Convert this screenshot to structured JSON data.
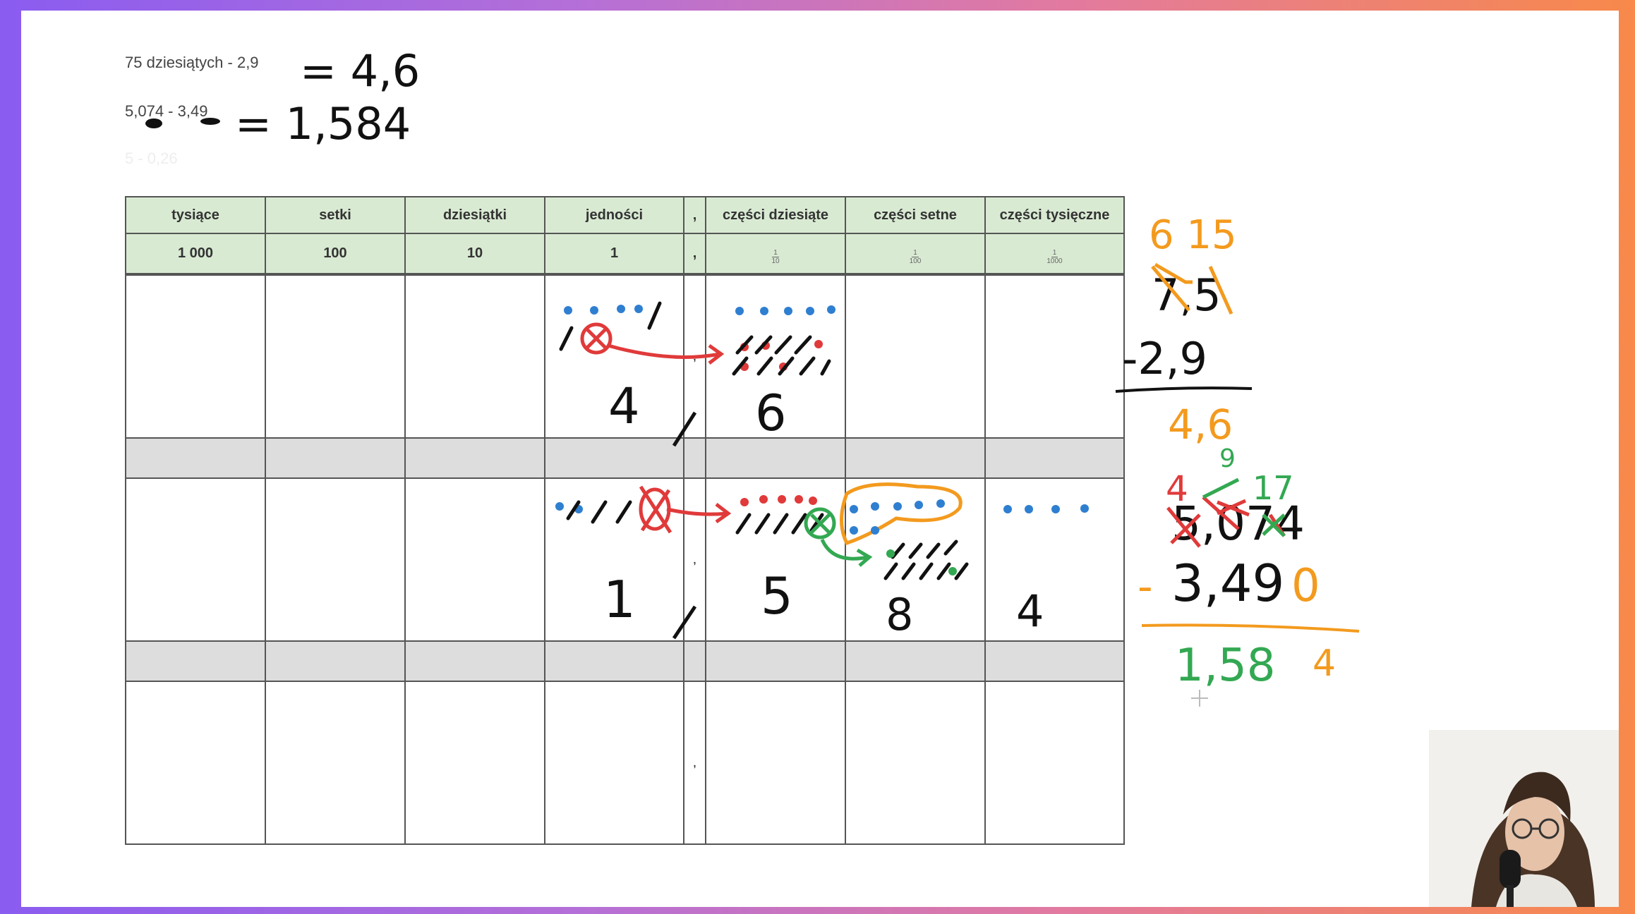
{
  "exercises": [
    {
      "text": "75 dziesiątych - 2,9",
      "answer": "= 4,6"
    },
    {
      "text": "5,074 - 3,49",
      "answer": "= 1,584"
    },
    {
      "text": "5 - 0,26"
    }
  ],
  "table": {
    "headers": [
      "tysiące",
      "setki",
      "dziesiątki",
      "jedności",
      ",",
      "części dziesiąte",
      "części setne",
      "części tysięczne"
    ],
    "values": [
      "1 000",
      "100",
      "10",
      "1",
      ","
    ],
    "fractions": [
      {
        "num": "1",
        "den": "10"
      },
      {
        "num": "1",
        "den": "100"
      },
      {
        "num": "1",
        "den": "1000"
      }
    ],
    "comma": ",",
    "row1_digits": [
      "4",
      "6"
    ],
    "row2_digits": [
      "1",
      "5",
      "8",
      "4"
    ]
  },
  "calc1": {
    "borrow": "6 15",
    "minuend": "7,5",
    "subtrahend": "-2,9",
    "result": "4,6"
  },
  "calc2": {
    "borrow_red": "4",
    "borrow_green_top": "9",
    "borrow_green": "17",
    "minuend": "5,074",
    "minus": "-",
    "subtrahend": "3,49",
    "padding_zero": "0",
    "result": "1,58",
    "result_last": "4"
  },
  "colors": {
    "orange": "#f39a1e",
    "red": "#e03a3a",
    "green": "#33a852",
    "blue": "#2f7fd0",
    "ink": "#111111",
    "header_green": "#d9ead3"
  }
}
